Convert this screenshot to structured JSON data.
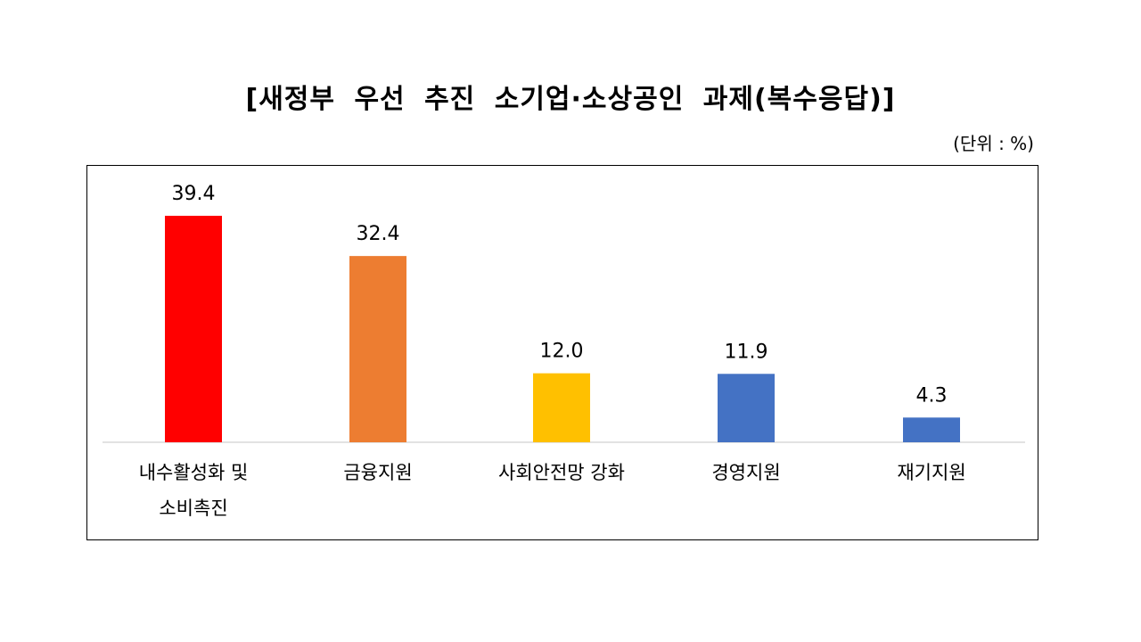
{
  "chart_data": {
    "type": "bar",
    "title": "[새정부 우선 추진 소기업·소상공인 과제(복수응답)]",
    "unit": "(단위 : %)",
    "categories": [
      [
        "내수활성화 및",
        "소비촉진"
      ],
      [
        "금융지원"
      ],
      [
        "사회안전망 강화"
      ],
      [
        "경영지원"
      ],
      [
        "재기지원"
      ]
    ],
    "values": [
      39.4,
      32.4,
      12.0,
      11.9,
      4.3
    ],
    "value_labels": [
      "39.4",
      "32.4",
      "12.0",
      "11.9",
      "4.3"
    ],
    "colors": [
      "#FF0000",
      "#ED7D31",
      "#FFC000",
      "#4472C4",
      "#4472C4"
    ],
    "ylim": [
      0,
      39.4
    ],
    "grid": false,
    "legend": "none"
  }
}
